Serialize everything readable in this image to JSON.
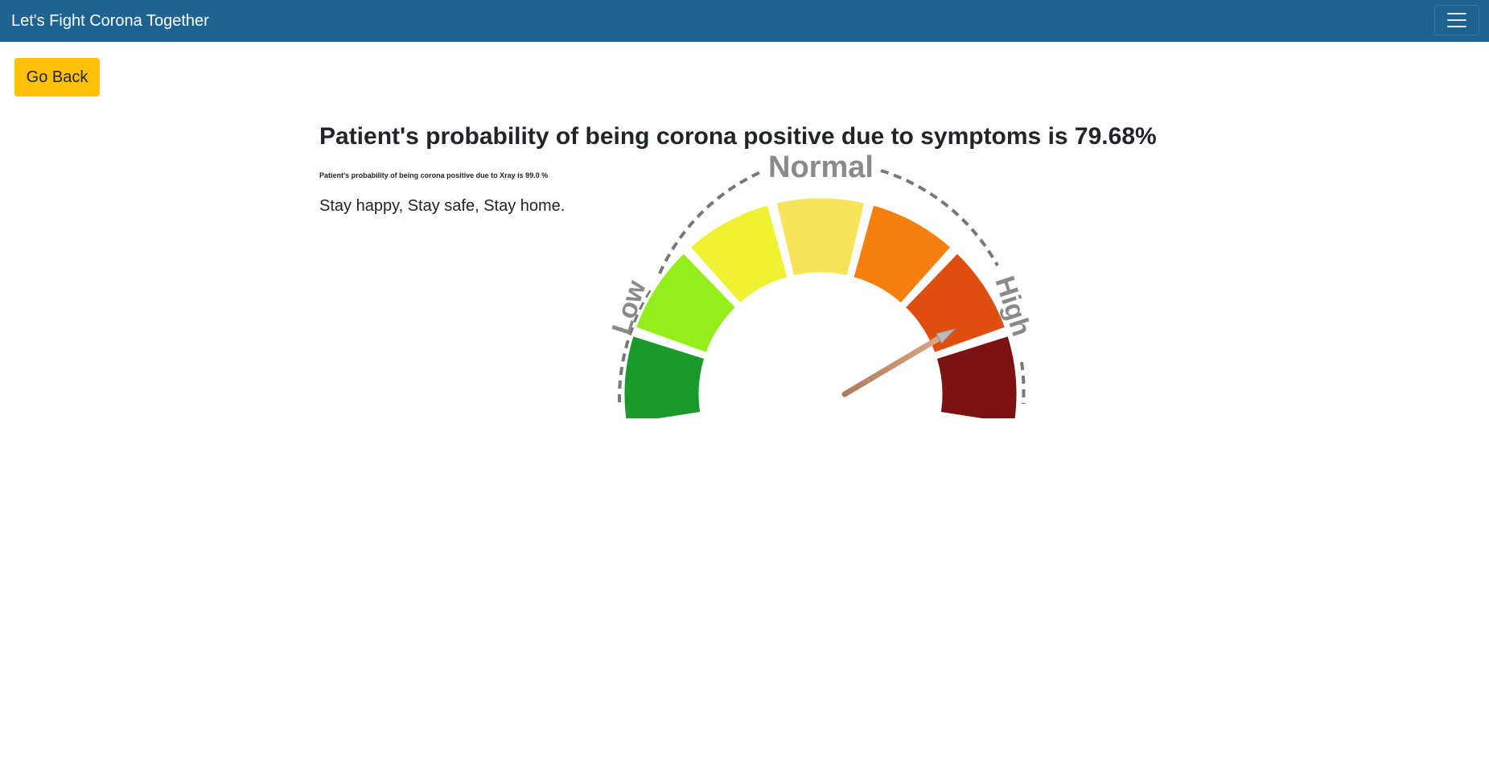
{
  "navbar": {
    "brand": "Let's Fight Corona Together",
    "menu_icon": "hamburger-icon"
  },
  "actions": {
    "back_label": "Go Back"
  },
  "result": {
    "symptoms_text": "Patient's probability of being corona positive due to symptoms is 79.68%",
    "symptoms_probability": 79.68,
    "xray_text": "Patient's probability of being corona positive due to Xray is 99.0 %",
    "xray_probability": 99.0,
    "motto": "Stay happy, Stay safe, Stay home."
  },
  "gauge": {
    "labels": {
      "low": "Low",
      "normal": "Normal",
      "high": "High"
    },
    "segment_colors": [
      "#1a9a2a",
      "#93ee1c",
      "#eef230",
      "#f7e45a",
      "#f5800f",
      "#e04d10",
      "#7d1212"
    ],
    "needle_value": 79.68,
    "colors": {
      "navbar": "#1f6391",
      "button": "#ffc107"
    }
  }
}
